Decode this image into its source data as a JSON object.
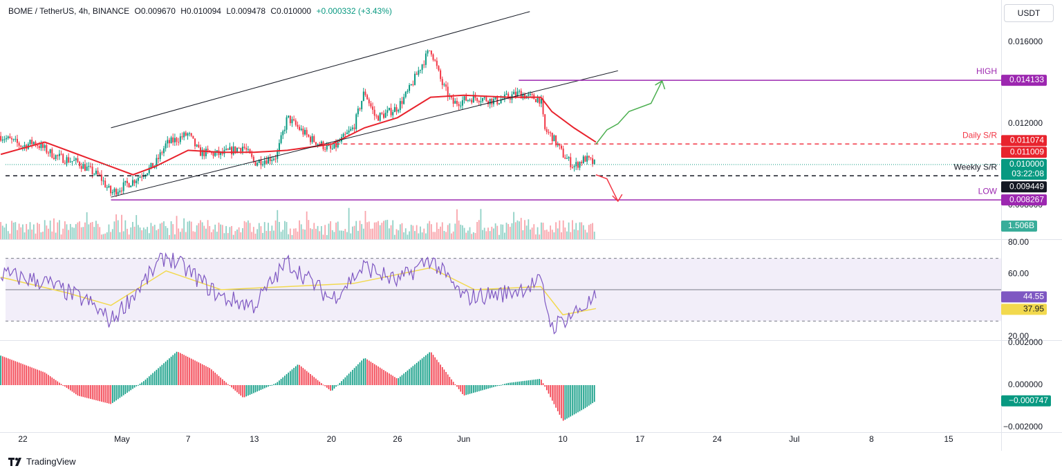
{
  "header": {
    "symbol": "BOME / TetherUS, 4h, BINANCE",
    "open": "O0.009670",
    "high": "H0.010094",
    "low": "L0.009478",
    "close": "C0.010000",
    "change": "+0.000332 (+3.43%)"
  },
  "currency_button": "USDT",
  "brand": "TradingView",
  "colors": {
    "up": "#089981",
    "down": "#f23645",
    "ema": "#e8232d",
    "level": "#9c27b0",
    "rsi": "#7e57c2",
    "rsi_ma": "#f2d94e"
  },
  "chart_data": [
    {
      "type": "candlestick",
      "panel": "price",
      "ylim": [
        0.0078,
        0.017
      ],
      "price_ticks": [
        "0.016000",
        "0.012000",
        "0.008000"
      ],
      "time_ticks": [
        "22",
        "May",
        "7",
        "13",
        "20",
        "26",
        "Jun",
        "10",
        "17",
        "24",
        "Jul",
        "8",
        "15"
      ],
      "ohlc_path": [
        [
          "2024-04-20",
          0.0114
        ],
        [
          "2024-04-22",
          0.0109
        ],
        [
          "2024-04-23",
          0.0111
        ],
        [
          "2024-04-25",
          0.0104
        ],
        [
          "2024-04-27",
          0.0101
        ],
        [
          "2024-04-29",
          0.0094
        ],
        [
          "2024-04-30",
          0.0086
        ],
        [
          "2024-05-02",
          0.0092
        ],
        [
          "2024-05-04",
          0.01
        ],
        [
          "2024-05-05",
          0.011
        ],
        [
          "2024-05-07",
          0.0115
        ],
        [
          "2024-05-08",
          0.0106
        ],
        [
          "2024-05-10",
          0.0105
        ],
        [
          "2024-05-12",
          0.0109
        ],
        [
          "2024-05-13",
          0.0101
        ],
        [
          "2024-05-15",
          0.0104
        ],
        [
          "2024-05-16",
          0.0123
        ],
        [
          "2024-05-18",
          0.0113
        ],
        [
          "2024-05-20",
          0.0107
        ],
        [
          "2024-05-22",
          0.0118
        ],
        [
          "2024-05-23",
          0.0136
        ],
        [
          "2024-05-24",
          0.0123
        ],
        [
          "2024-05-25",
          0.0125
        ],
        [
          "2024-05-26",
          0.0128
        ],
        [
          "2024-05-27",
          0.0136
        ],
        [
          "2024-05-28",
          0.0147
        ],
        [
          "2024-05-29",
          0.0157
        ],
        [
          "2024-05-30",
          0.014
        ],
        [
          "2024-05-31",
          0.013
        ],
        [
          "2024-06-02",
          0.0133
        ],
        [
          "2024-06-04",
          0.0131
        ],
        [
          "2024-06-06",
          0.0135
        ],
        [
          "2024-06-07",
          0.0133
        ],
        [
          "2024-06-08",
          0.0132
        ],
        [
          "2024-06-08T08",
          0.0117
        ],
        [
          "2024-06-09",
          0.0114
        ],
        [
          "2024-06-10",
          0.0105
        ],
        [
          "2024-06-11",
          0.0099
        ],
        [
          "2024-06-12",
          0.0103
        ],
        [
          "2024-06-13",
          0.01
        ]
      ],
      "ema_path": [
        [
          "2024-04-20",
          0.0105
        ],
        [
          "2024-04-24",
          0.0111
        ],
        [
          "2024-04-27",
          0.0105
        ],
        [
          "2024-04-30",
          0.0099
        ],
        [
          "2024-05-02",
          0.0095
        ],
        [
          "2024-05-04",
          0.0099
        ],
        [
          "2024-05-07",
          0.0107
        ],
        [
          "2024-05-10",
          0.0106
        ],
        [
          "2024-05-13",
          0.0106
        ],
        [
          "2024-05-16",
          0.0107
        ],
        [
          "2024-05-20",
          0.011
        ],
        [
          "2024-05-23",
          0.0118
        ],
        [
          "2024-05-26",
          0.0123
        ],
        [
          "2024-05-29",
          0.0133
        ],
        [
          "2024-06-01",
          0.0134
        ],
        [
          "2024-06-05",
          0.0133
        ],
        [
          "2024-06-08",
          0.0133
        ],
        [
          "2024-06-09",
          0.0126
        ],
        [
          "2024-06-11",
          0.0118
        ],
        [
          "2024-06-13",
          0.0111
        ]
      ],
      "channel_upper": [
        [
          "2024-04-30",
          0.0118
        ],
        [
          "2024-06-07",
          0.0175
        ]
      ],
      "channel_lower": [
        [
          "2024-04-30",
          0.0084
        ],
        [
          "2024-06-15",
          0.0146
        ]
      ],
      "levels": [
        {
          "name": "HIGH",
          "value": 0.014133,
          "label": "0.014133",
          "color": "#9c27b0",
          "style": "solid"
        },
        {
          "name": "Daily S/R",
          "value": 0.011009,
          "label": "0.011009",
          "color": "#f23645",
          "style": "dashed"
        },
        {
          "name": "Weekly S/R",
          "value": 0.009449,
          "label": "0.009449",
          "color": "#131722",
          "style": "dashed"
        },
        {
          "name": "LOW",
          "value": 0.008267,
          "label": "0.008267",
          "color": "#9c27b0",
          "style": "solid"
        }
      ],
      "ema_value_label": "0.011074",
      "last_price_label": "0.010000",
      "countdown": "03:22:08",
      "volume_label": "1.506B",
      "projection_up": [
        [
          "2024-06-13",
          0.011
        ],
        [
          "2024-06-14",
          0.0117
        ],
        [
          "2024-06-15",
          0.012
        ],
        [
          "2024-06-16",
          0.0126
        ],
        [
          "2024-06-18",
          0.013
        ],
        [
          "2024-06-19",
          0.0141
        ]
      ],
      "projection_down": [
        [
          "2024-06-13",
          0.0095
        ],
        [
          "2024-06-14",
          0.0093
        ],
        [
          "2024-06-15",
          0.0082
        ]
      ]
    },
    {
      "type": "line",
      "panel": "rsi",
      "ylim": [
        20,
        80
      ],
      "ticks": [
        "80.00",
        "60.00",
        "20.00"
      ],
      "band": [
        30,
        70
      ],
      "midline": 50,
      "rsi_path": [
        [
          "2024-04-20",
          60
        ],
        [
          "2024-04-24",
          55
        ],
        [
          "2024-04-28",
          42
        ],
        [
          "2024-04-30",
          30
        ],
        [
          "2024-05-03",
          55
        ],
        [
          "2024-05-05",
          72
        ],
        [
          "2024-05-07",
          62
        ],
        [
          "2024-05-10",
          45
        ],
        [
          "2024-05-13",
          40
        ],
        [
          "2024-05-16",
          68
        ],
        [
          "2024-05-20",
          44
        ],
        [
          "2024-05-23",
          65
        ],
        [
          "2024-05-26",
          55
        ],
        [
          "2024-05-29",
          70
        ],
        [
          "2024-06-01",
          45
        ],
        [
          "2024-06-05",
          48
        ],
        [
          "2024-06-08",
          55
        ],
        [
          "2024-06-09",
          26
        ],
        [
          "2024-06-11",
          35
        ],
        [
          "2024-06-13",
          44.55
        ]
      ],
      "rsi_ma_path": [
        [
          "2024-04-20",
          58
        ],
        [
          "2024-04-26",
          48
        ],
        [
          "2024-04-30",
          40
        ],
        [
          "2024-05-05",
          62
        ],
        [
          "2024-05-10",
          50
        ],
        [
          "2024-05-16",
          52
        ],
        [
          "2024-05-22",
          54
        ],
        [
          "2024-05-29",
          64
        ],
        [
          "2024-06-02",
          50
        ],
        [
          "2024-06-08",
          52
        ],
        [
          "2024-06-10",
          34
        ],
        [
          "2024-06-13",
          37.95
        ]
      ],
      "rsi_value": "44.55",
      "rsi_ma_value": "37.95"
    },
    {
      "type": "histogram",
      "panel": "awesome_oscillator",
      "ylim": [
        -0.002,
        0.002
      ],
      "ticks": [
        "0.002000",
        "0.000000",
        "−0.002000"
      ],
      "value_path": [
        [
          "2024-04-20",
          0.0014
        ],
        [
          "2024-04-24",
          0.0006
        ],
        [
          "2024-04-27",
          -0.0005
        ],
        [
          "2024-04-30",
          -0.0009
        ],
        [
          "2024-05-03",
          0.0002
        ],
        [
          "2024-05-06",
          0.0016
        ],
        [
          "2024-05-09",
          0.0008
        ],
        [
          "2024-05-12",
          -0.0006
        ],
        [
          "2024-05-15",
          0.0001
        ],
        [
          "2024-05-17",
          0.001
        ],
        [
          "2024-05-20",
          -0.0003
        ],
        [
          "2024-05-23",
          0.0013
        ],
        [
          "2024-05-26",
          0.0003
        ],
        [
          "2024-05-29",
          0.0016
        ],
        [
          "2024-06-01",
          -0.0005
        ],
        [
          "2024-06-05",
          0.0001
        ],
        [
          "2024-06-08",
          0.0003
        ],
        [
          "2024-06-10",
          -0.0017
        ],
        [
          "2024-06-12",
          -0.0011
        ],
        [
          "2024-06-13",
          -0.000747
        ]
      ],
      "value_label": "−0.000747"
    }
  ]
}
